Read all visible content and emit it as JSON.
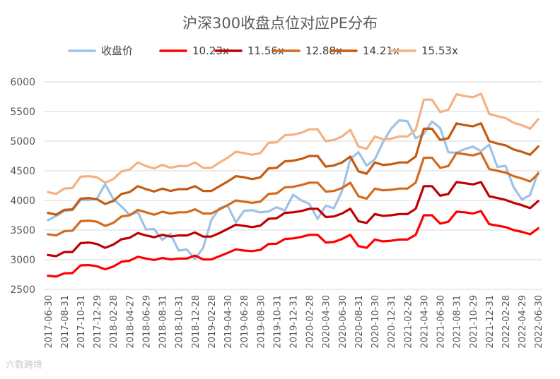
{
  "chart_data": {
    "type": "line",
    "title": "沪深300收盘点位对应PE分布",
    "xlabel": "",
    "ylabel": "",
    "ylim": [
      2500,
      6000
    ],
    "yticks": [
      2500,
      3000,
      3500,
      4000,
      4500,
      5000,
      5500,
      6000
    ],
    "grid": true,
    "legend_position": "top",
    "x": [
      "2017-06-30",
      "2017-07-31",
      "2017-08-31",
      "2017-09-29",
      "2017-10-31",
      "2017-11-30",
      "2017-12-29",
      "2018-01-31",
      "2018-02-28",
      "2018-03-30",
      "2018-04-27",
      "2018-05-31",
      "2018-06-29",
      "2018-07-31",
      "2018-08-31",
      "2018-09-28",
      "2018-10-31",
      "2018-11-30",
      "2018-12-28",
      "2019-01-31",
      "2019-02-28",
      "2019-03-29",
      "2019-04-30",
      "2019-05-31",
      "2019-06-28",
      "2019-07-31",
      "2019-08-30",
      "2019-09-30",
      "2019-10-31",
      "2019-11-29",
      "2019-12-31",
      "2020-01-23",
      "2020-02-28",
      "2020-03-31",
      "2020-04-30",
      "2020-05-29",
      "2020-06-30",
      "2020-07-31",
      "2020-08-31",
      "2020-09-30",
      "2020-10-30",
      "2020-11-30",
      "2020-12-31",
      "2021-01-29",
      "2021-02-26",
      "2021-03-31",
      "2021-04-30",
      "2021-05-31",
      "2021-06-30",
      "2021-07-30",
      "2021-08-31",
      "2021-09-30",
      "2021-10-29",
      "2021-11-30",
      "2021-12-31",
      "2022-01-28",
      "2022-02-28",
      "2022-03-31",
      "2022-04-29",
      "2022-05-31",
      "2022-06-30"
    ],
    "x_tick_labels": [
      "2017-06-30",
      "2017-08-31",
      "2017-10-31",
      "2017-12-29",
      "2018-02-28",
      "2018-04-27",
      "2018-06-29",
      "2018-08-31",
      "2018-10-31",
      "2018-12-28",
      "2019-02-28",
      "2019-04-30",
      "2019-06-28",
      "2019-08-30",
      "2019-10-31",
      "2019-12-31",
      "2020-02-28",
      "2020-04-30",
      "2020-06-30",
      "2020-08-31",
      "2020-10-30",
      "2020-12-31",
      "2021-02-26",
      "2021-04-30",
      "2021-06-30",
      "2021-08-31",
      "2021-10-29",
      "2021-12-31",
      "2022-02-28",
      "2022-04-29",
      "2022-06-30"
    ],
    "series": [
      {
        "name": "收盘价",
        "color": "#9dc3e6",
        "values": [
          3666,
          3737,
          3822,
          3837,
          4006,
          4006,
          4031,
          4275,
          4023,
          3899,
          3756,
          3802,
          3510,
          3517,
          3335,
          3438,
          3153,
          3173,
          3011,
          3202,
          3670,
          3872,
          3913,
          3630,
          3825,
          3836,
          3799,
          3814,
          3886,
          3828,
          4097,
          4004,
          3940,
          3687,
          3913,
          3868,
          4164,
          4695,
          4816,
          4587,
          4695,
          4980,
          5211,
          5352,
          5336,
          5049,
          5123,
          5332,
          5224,
          4812,
          4805,
          4866,
          4908,
          4832,
          4940,
          4564,
          4582,
          4223,
          4016,
          4090,
          4485
        ]
      },
      {
        "name": "10.23x",
        "color": "#ff0000",
        "values": [
          2730,
          2715,
          2770,
          2775,
          2905,
          2910,
          2890,
          2838,
          2885,
          2965,
          2985,
          3050,
          3020,
          2995,
          3030,
          3005,
          3020,
          3020,
          3070,
          3005,
          3005,
          3060,
          3115,
          3175,
          3155,
          3145,
          3165,
          3265,
          3270,
          3350,
          3360,
          3385,
          3420,
          3420,
          3290,
          3300,
          3350,
          3420,
          3230,
          3200,
          3340,
          3310,
          3320,
          3340,
          3340,
          3420,
          3750,
          3750,
          3610,
          3640,
          3810,
          3800,
          3780,
          3820,
          3600,
          3575,
          3550,
          3500,
          3470,
          3430,
          3530
        ]
      },
      {
        "name": "11.56x",
        "color": "#c00000",
        "values": [
          3080,
          3060,
          3130,
          3130,
          3280,
          3290,
          3265,
          3200,
          3255,
          3345,
          3370,
          3450,
          3410,
          3380,
          3420,
          3390,
          3410,
          3410,
          3460,
          3390,
          3390,
          3450,
          3520,
          3590,
          3570,
          3550,
          3575,
          3690,
          3700,
          3790,
          3800,
          3820,
          3860,
          3860,
          3720,
          3730,
          3780,
          3860,
          3650,
          3620,
          3770,
          3740,
          3750,
          3770,
          3770,
          3860,
          4240,
          4240,
          4080,
          4110,
          4310,
          4290,
          4270,
          4310,
          4070,
          4040,
          4010,
          3960,
          3920,
          3870,
          3990
        ]
      },
      {
        "name": "12.88x",
        "color": "#d46a1e",
        "values": [
          3430,
          3410,
          3480,
          3490,
          3650,
          3660,
          3640,
          3570,
          3620,
          3730,
          3750,
          3840,
          3800,
          3760,
          3810,
          3780,
          3800,
          3800,
          3850,
          3780,
          3780,
          3850,
          3920,
          4000,
          3980,
          3960,
          3980,
          4110,
          4120,
          4220,
          4230,
          4260,
          4300,
          4300,
          4150,
          4160,
          4210,
          4300,
          4070,
          4030,
          4200,
          4170,
          4180,
          4200,
          4200,
          4300,
          4720,
          4720,
          4550,
          4580,
          4800,
          4780,
          4760,
          4800,
          4530,
          4500,
          4470,
          4410,
          4370,
          4320,
          4450
        ]
      },
      {
        "name": "14.21x",
        "color": "#c55a11",
        "values": [
          3790,
          3760,
          3840,
          3850,
          4030,
          4040,
          4020,
          3940,
          3990,
          4110,
          4140,
          4240,
          4190,
          4150,
          4200,
          4160,
          4190,
          4190,
          4240,
          4160,
          4160,
          4240,
          4320,
          4410,
          4390,
          4360,
          4390,
          4540,
          4550,
          4660,
          4670,
          4700,
          4750,
          4750,
          4570,
          4590,
          4640,
          4740,
          4490,
          4450,
          4640,
          4600,
          4610,
          4640,
          4640,
          4740,
          5210,
          5210,
          5020,
          5050,
          5300,
          5270,
          5250,
          5300,
          5000,
          4960,
          4930,
          4860,
          4820,
          4770,
          4910
        ]
      },
      {
        "name": "15.53x",
        "color": "#f4b183",
        "values": [
          4140,
          4110,
          4200,
          4210,
          4400,
          4410,
          4390,
          4300,
          4360,
          4490,
          4520,
          4640,
          4580,
          4540,
          4600,
          4550,
          4580,
          4580,
          4640,
          4550,
          4550,
          4640,
          4720,
          4820,
          4800,
          4770,
          4800,
          4970,
          4980,
          5100,
          5110,
          5140,
          5200,
          5200,
          5000,
          5020,
          5080,
          5190,
          4910,
          4870,
          5080,
          5030,
          5040,
          5080,
          5080,
          5190,
          5700,
          5700,
          5490,
          5530,
          5790,
          5760,
          5740,
          5800,
          5460,
          5420,
          5390,
          5310,
          5270,
          5210,
          5370
        ]
      }
    ]
  },
  "watermark": "六数跨境"
}
